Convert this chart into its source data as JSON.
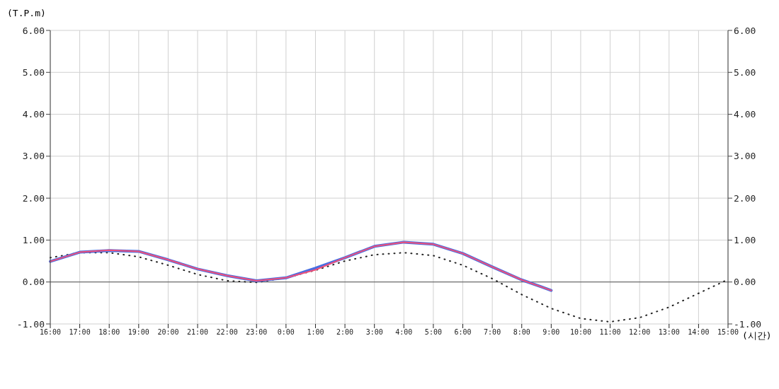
{
  "chart_data": {
    "type": "line",
    "ylabel": "(T.P.m)",
    "xlabel": "(시간)",
    "categories": [
      "16:00",
      "17:00",
      "18:00",
      "19:00",
      "20:00",
      "21:00",
      "22:00",
      "23:00",
      "0:00",
      "1:00",
      "2:00",
      "3:00",
      "4:00",
      "5:00",
      "6:00",
      "7:00",
      "8:00",
      "9:00",
      "10:00",
      "11:00",
      "12:00",
      "13:00",
      "14:00",
      "15:00"
    ],
    "series": [
      {
        "color": "#222222",
        "line_style": "dotted",
        "values": [
          0.58,
          0.7,
          0.7,
          0.6,
          0.4,
          0.18,
          0.03,
          -0.01,
          0.1,
          0.28,
          0.5,
          0.65,
          0.7,
          0.63,
          0.4,
          0.08,
          -0.3,
          -0.63,
          -0.87,
          -0.95,
          -0.85,
          -0.6,
          -0.27,
          0.06
        ]
      },
      {
        "color": "#4a6ee0",
        "line_style": "solid",
        "values": [
          0.49,
          0.71,
          0.75,
          0.73,
          0.53,
          0.31,
          0.15,
          0.03,
          0.1,
          0.33,
          0.58,
          0.85,
          0.95,
          0.9,
          0.68,
          0.36,
          0.05,
          -0.2,
          null,
          null,
          null,
          null,
          null,
          null
        ]
      },
      {
        "color": "#f0507a",
        "line_style": "solid",
        "values": [
          0.49,
          0.71,
          0.76,
          0.73,
          0.53,
          0.31,
          0.15,
          0.03,
          0.1,
          0.29,
          0.58,
          0.85,
          0.95,
          0.9,
          0.68,
          0.36,
          0.05,
          -0.2,
          null,
          null,
          null,
          null,
          null,
          null
        ]
      }
    ],
    "ylim": [
      -1,
      6
    ],
    "yticks": [
      {
        "value": -1,
        "label": "-1.00"
      },
      {
        "value": 0,
        "label": "0.00"
      },
      {
        "value": 1,
        "label": "1.00"
      },
      {
        "value": 2,
        "label": "2.00"
      },
      {
        "value": 3,
        "label": "3.00"
      },
      {
        "value": 4,
        "label": "4.00"
      },
      {
        "value": 5,
        "label": "5.00"
      },
      {
        "value": 6,
        "label": "6.00"
      }
    ],
    "y2lim": [
      -1,
      6
    ],
    "y2ticks": [
      {
        "value": -1,
        "label": "-1.00"
      },
      {
        "value": 0,
        "label": "0.00"
      },
      {
        "value": 1,
        "label": "1.00"
      },
      {
        "value": 2,
        "label": "2.00"
      },
      {
        "value": 3,
        "label": "3.00"
      },
      {
        "value": 4,
        "label": "4.00"
      },
      {
        "value": 5,
        "label": "5.00"
      },
      {
        "value": 6,
        "label": "6.00"
      }
    ],
    "ref_lines": [
      {
        "axis": "y",
        "value": 0,
        "color": "#555555"
      }
    ],
    "grid": true,
    "marker": "none"
  }
}
